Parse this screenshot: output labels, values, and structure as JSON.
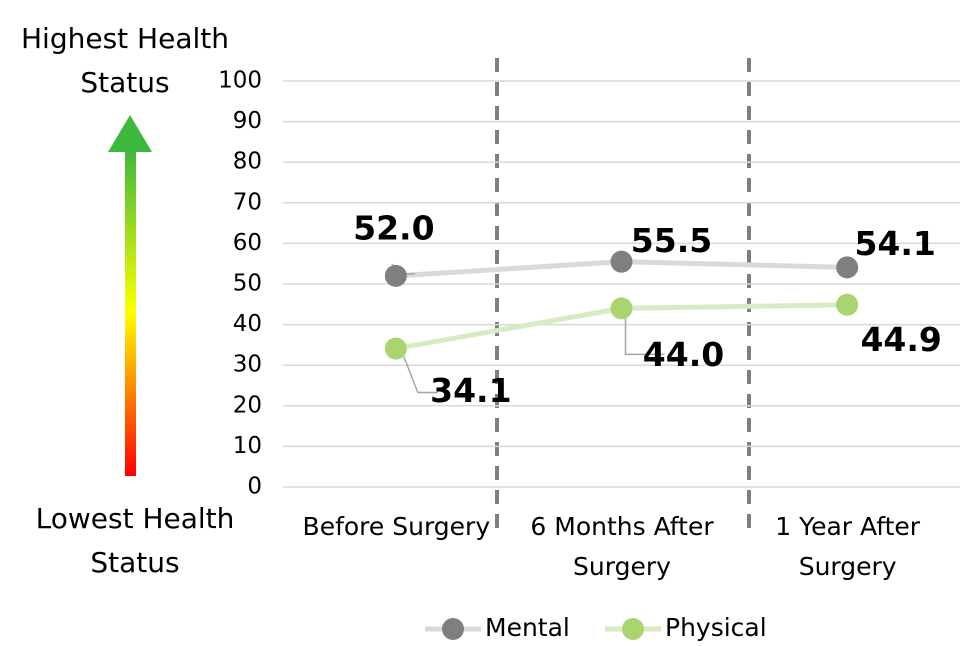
{
  "chart_data": {
    "type": "line",
    "annotations": [
      "Highest Health Status",
      "Lowest Health Status"
    ],
    "categories": [
      "Before Surgery",
      "6 Months After Surgery",
      "1 Year After Surgery"
    ],
    "series": [
      {
        "name": "Mental",
        "color": "#d9d9d9",
        "marker_color": "#7f7f7f",
        "values": [
          52.0,
          55.5,
          54.1
        ],
        "value_labels": [
          "52.0",
          "55.5",
          "54.1"
        ]
      },
      {
        "name": "Physical",
        "color": "#d8ebc2",
        "marker_color": "#a9d46f",
        "values": [
          34.1,
          44.0,
          44.9
        ],
        "value_labels": [
          "34.1",
          "44.0",
          "44.9"
        ]
      }
    ],
    "ylim": [
      0,
      100
    ],
    "yticks": [
      0,
      10,
      20,
      30,
      40,
      50,
      60,
      70,
      80,
      90,
      100
    ],
    "grid": true,
    "legend": "bottom"
  }
}
